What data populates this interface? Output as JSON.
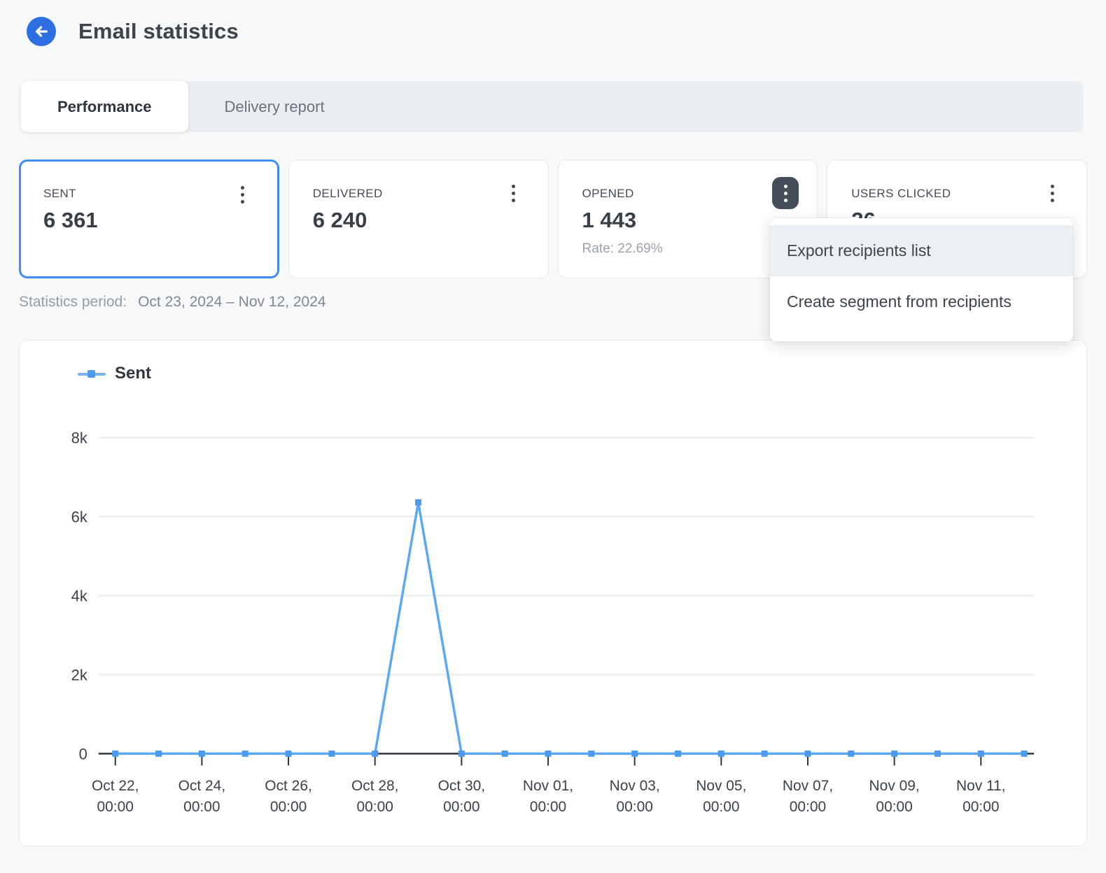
{
  "header": {
    "title": "Email statistics"
  },
  "tabs": [
    {
      "label": "Performance",
      "active": true
    },
    {
      "label": "Delivery report",
      "active": false
    }
  ],
  "cards": [
    {
      "label": "SENT",
      "value": "6 361",
      "selected": true
    },
    {
      "label": "DELIVERED",
      "value": "6 240"
    },
    {
      "label": "OPENED",
      "value": "1 443",
      "rate": "Rate: 22.69%",
      "menu_open": true
    },
    {
      "label": "USERS CLICKED",
      "value": "26"
    }
  ],
  "menu": {
    "items": [
      "Export recipients list",
      "Create segment from recipients"
    ]
  },
  "period": {
    "label": "Statistics period:",
    "value": "Oct 23, 2024 – Nov 12, 2024"
  },
  "icons": {
    "back": "back-arrow-icon",
    "kebab": "kebab-menu-icon"
  },
  "colors": {
    "accent_blue": "#2d6fe3",
    "selected_card_border": "#3f8cfa",
    "line": "#5ca8f2",
    "marker": "#4c9bf0",
    "grid": "#e9eaeb",
    "axis": "#2f363d",
    "axis_text": "#3b424a"
  },
  "chart_data": {
    "type": "line",
    "title": "",
    "legend": [
      {
        "name": "Sent",
        "color": "#4c9bf0"
      }
    ],
    "legend_position": "top-left",
    "grid": true,
    "x": [
      "Oct 22",
      "Oct 23",
      "Oct 24",
      "Oct 25",
      "Oct 26",
      "Oct 27",
      "Oct 28",
      "Oct 29",
      "Oct 30",
      "Oct 31",
      "Nov 01",
      "Nov 02",
      "Nov 03",
      "Nov 04",
      "Nov 05",
      "Nov 06",
      "Nov 07",
      "Nov 08",
      "Nov 09",
      "Nov 10",
      "Nov 11",
      "Nov 12"
    ],
    "series": [
      {
        "name": "Sent",
        "values": [
          0,
          0,
          0,
          0,
          0,
          0,
          0,
          6361,
          0,
          0,
          0,
          0,
          0,
          0,
          0,
          0,
          0,
          0,
          0,
          0,
          0,
          0
        ]
      }
    ],
    "ylim": [
      0,
      8000
    ],
    "yticks": [
      {
        "v": 0,
        "label": "0"
      },
      {
        "v": 2000,
        "label": "2k"
      },
      {
        "v": 4000,
        "label": "4k"
      },
      {
        "v": 6000,
        "label": "6k"
      },
      {
        "v": 8000,
        "label": "8k"
      }
    ],
    "xticks": [
      {
        "i": 0,
        "line1": "Oct 22,",
        "line2": "00:00"
      },
      {
        "i": 2,
        "line1": "Oct 24,",
        "line2": "00:00"
      },
      {
        "i": 4,
        "line1": "Oct 26,",
        "line2": "00:00"
      },
      {
        "i": 6,
        "line1": "Oct 28,",
        "line2": "00:00"
      },
      {
        "i": 8,
        "line1": "Oct 30,",
        "line2": "00:00"
      },
      {
        "i": 10,
        "line1": "Nov 01,",
        "line2": "00:00"
      },
      {
        "i": 12,
        "line1": "Nov 03,",
        "line2": "00:00"
      },
      {
        "i": 14,
        "line1": "Nov 05,",
        "line2": "00:00"
      },
      {
        "i": 16,
        "line1": "Nov 07,",
        "line2": "00:00"
      },
      {
        "i": 18,
        "line1": "Nov 09,",
        "line2": "00:00"
      },
      {
        "i": 20,
        "line1": "Nov 11,",
        "line2": "00:00"
      }
    ]
  }
}
